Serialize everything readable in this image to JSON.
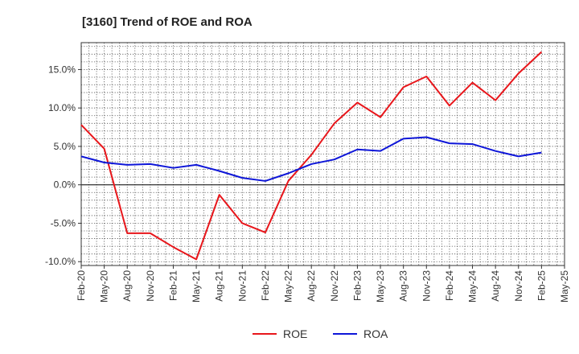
{
  "chart_data": {
    "type": "line",
    "title": "[3160]  Trend of ROE and ROA",
    "categories": [
      "Feb-20",
      "May-20",
      "Aug-20",
      "Nov-20",
      "Feb-21",
      "May-21",
      "Aug-21",
      "Nov-21",
      "Feb-22",
      "May-22",
      "Aug-22",
      "Nov-22",
      "Feb-23",
      "May-23",
      "Aug-23",
      "Nov-23",
      "Feb-24",
      "May-24",
      "Aug-24",
      "Nov-24",
      "Feb-25",
      "May-25"
    ],
    "series": [
      {
        "name": "ROE",
        "color": "#e8161b",
        "values": [
          7.8,
          4.7,
          -6.3,
          -6.3,
          -8.1,
          -9.7,
          -1.3,
          -5.0,
          -6.2,
          0.5,
          3.9,
          8.0,
          10.7,
          8.8,
          12.7,
          14.1,
          10.3,
          13.3,
          11.0,
          14.5,
          17.3,
          null
        ]
      },
      {
        "name": "ROA",
        "color": "#0e16d8",
        "values": [
          3.7,
          2.9,
          2.6,
          2.7,
          2.2,
          2.6,
          1.8,
          0.9,
          0.5,
          1.5,
          2.7,
          3.3,
          4.6,
          4.4,
          6.0,
          6.2,
          5.4,
          5.3,
          4.4,
          3.7,
          4.2,
          null
        ]
      }
    ],
    "y_ticks": [
      15.0,
      10.0,
      5.0,
      0.0,
      -5.0,
      -10.0
    ],
    "y_tick_labels": [
      "15.0%",
      "10.0%",
      "5.0%",
      "0.0%",
      "-5.0%",
      "-10.0%"
    ],
    "ylim": [
      -10.5,
      18.5
    ],
    "grid": true,
    "legend_position": "bottom-center"
  }
}
